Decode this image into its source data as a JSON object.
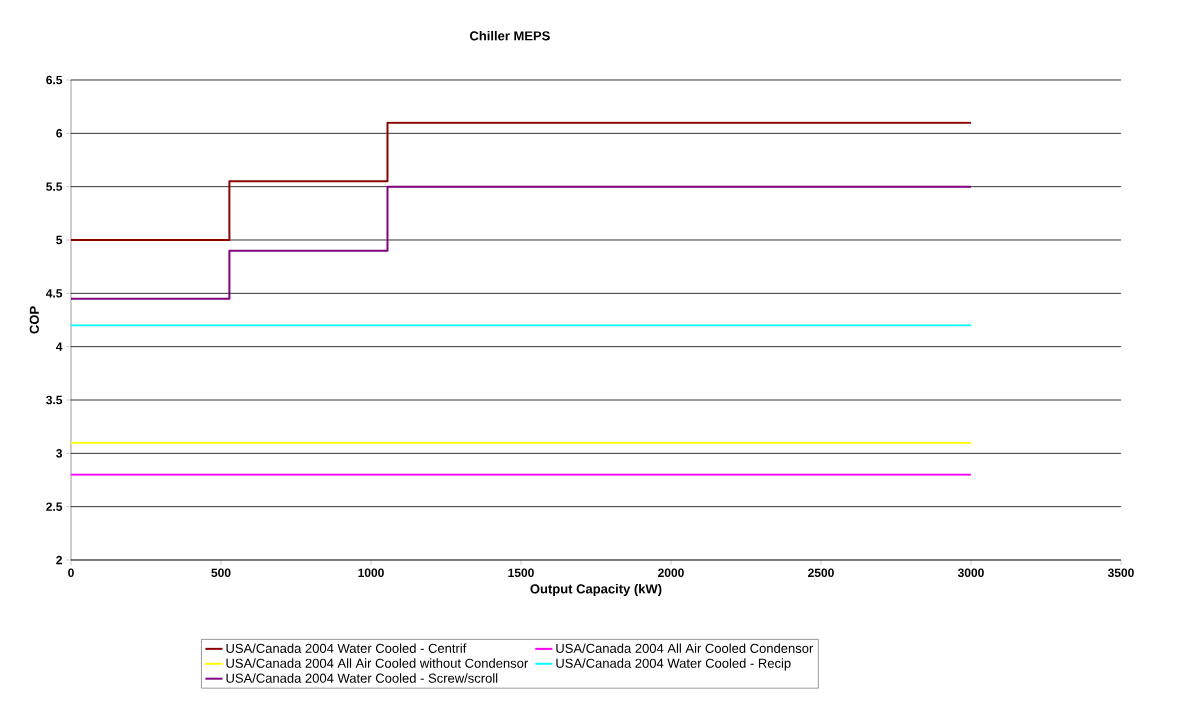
{
  "chart_data": {
    "type": "step",
    "title": "Chiller MEPS",
    "xlabel": "Output Capacity (kW)",
    "ylabel": "COP",
    "xlim": [
      0,
      3500
    ],
    "xticks": [
      0,
      500,
      1000,
      1500,
      2000,
      2500,
      3000,
      3500
    ],
    "ylim": [
      2,
      6.5
    ],
    "yticks": [
      2,
      2.5,
      3,
      3.5,
      4,
      4.5,
      5,
      5.5,
      6,
      6.5
    ],
    "grid": "y",
    "legend": "bottom",
    "marker": "none",
    "line_style": "solid",
    "series": [
      {
        "name": "USA/Canada 2004 Water Cooled - Centrif",
        "color": "#8b0000",
        "x": [
          0,
          528,
          1055,
          3000
        ],
        "values": [
          5.0,
          5.55,
          6.1,
          6.1
        ]
      },
      {
        "name": "USA/Canada 2004 All Air Cooled Condensor",
        "color": "#ff00ff",
        "x": [
          0,
          3000
        ],
        "values": [
          2.8,
          2.8
        ]
      },
      {
        "name": "USA/Canada 2004 All Air Cooled without Condensor",
        "color": "#ffff00",
        "x": [
          0,
          3000
        ],
        "values": [
          3.1,
          3.1
        ]
      },
      {
        "name": "USA/Canada 2004 Water Cooled - Recip",
        "color": "#00ffff",
        "x": [
          0,
          3000
        ],
        "values": [
          4.2,
          4.2
        ]
      },
      {
        "name": "USA/Canada 2004 Water Cooled - Screw/scroll",
        "color": "#800080",
        "x": [
          0,
          528,
          1055,
          3000
        ],
        "values": [
          4.45,
          4.9,
          5.5,
          5.5
        ]
      }
    ]
  }
}
